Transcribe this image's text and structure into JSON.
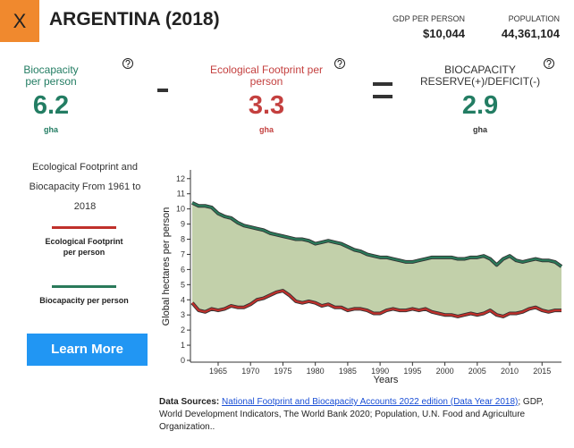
{
  "header": {
    "close": "X",
    "title": "ARGENTINA (2018)",
    "gdp_label": "GDP PER PERSON",
    "gdp": "$10,044",
    "population_label": "POPULATION",
    "population": "44,361,104"
  },
  "stats": [
    {
      "label": "Biocapacity per person",
      "value": "6.2",
      "unit": "gha"
    },
    {
      "label": "Ecological Footprint per person",
      "value": "3.3",
      "unit": "gha"
    },
    {
      "label": "BIOCAPACITY RESERVE(+)/DEFICIT(-)",
      "value": "2.9",
      "unit": "gha"
    }
  ],
  "sidebar": {
    "description": "Ecological Footprint and Biocapacity From 1961 to 2018",
    "button": "Learn More"
  },
  "chart_data": {
    "type": "line",
    "y_label": "Global hectares per person",
    "x_label": "Years",
    "x": [
      1961,
      1962,
      1963,
      1964,
      1965,
      1966,
      1967,
      1968,
      1969,
      1970,
      1971,
      1972,
      1973,
      1974,
      1975,
      1976,
      1977,
      1978,
      1979,
      1980,
      1981,
      1982,
      1983,
      1984,
      1985,
      1986,
      1987,
      1988,
      1989,
      1990,
      1991,
      1992,
      1993,
      1994,
      1995,
      1996,
      1997,
      1998,
      1999,
      2000,
      2001,
      2002,
      2003,
      2004,
      2005,
      2006,
      2007,
      2008,
      2009,
      2010,
      2011,
      2012,
      2013,
      2014,
      2015,
      2016,
      2017,
      2018
    ],
    "series": [
      {
        "name": "Ecological Footprint per person",
        "color": "#c0302b",
        "values": [
          3.8,
          3.3,
          3.2,
          3.4,
          3.3,
          3.4,
          3.6,
          3.5,
          3.5,
          3.7,
          4.0,
          4.1,
          4.3,
          4.5,
          4.6,
          4.3,
          3.9,
          3.8,
          3.9,
          3.8,
          3.6,
          3.7,
          3.5,
          3.5,
          3.3,
          3.4,
          3.4,
          3.3,
          3.1,
          3.1,
          3.3,
          3.4,
          3.3,
          3.3,
          3.4,
          3.3,
          3.4,
          3.2,
          3.1,
          3.0,
          3.0,
          2.9,
          3.0,
          3.1,
          3.0,
          3.1,
          3.3,
          3.0,
          2.9,
          3.1,
          3.1,
          3.2,
          3.4,
          3.5,
          3.3,
          3.2,
          3.3,
          3.3
        ]
      },
      {
        "name": "Biocapacity per person",
        "color": "#2a7a5a",
        "values": [
          10.4,
          10.2,
          10.2,
          10.1,
          9.7,
          9.5,
          9.4,
          9.1,
          8.9,
          8.8,
          8.7,
          8.6,
          8.4,
          8.3,
          8.2,
          8.1,
          8.0,
          8.0,
          7.9,
          7.7,
          7.8,
          7.9,
          7.8,
          7.7,
          7.5,
          7.3,
          7.2,
          7.0,
          6.9,
          6.8,
          6.8,
          6.7,
          6.6,
          6.5,
          6.5,
          6.6,
          6.7,
          6.8,
          6.8,
          6.8,
          6.8,
          6.7,
          6.7,
          6.8,
          6.8,
          6.9,
          6.7,
          6.3,
          6.7,
          6.9,
          6.6,
          6.5,
          6.6,
          6.7,
          6.6,
          6.6,
          6.5,
          6.2
        ]
      }
    ],
    "xlim": [
      1961,
      2018
    ],
    "xticks": [
      1965,
      1970,
      1975,
      1980,
      1985,
      1990,
      1995,
      2000,
      2005,
      2010,
      2015
    ],
    "ylim": [
      0,
      12.4
    ],
    "yticks": [
      0,
      1,
      2,
      3,
      4,
      5,
      6,
      7,
      8,
      9,
      10,
      11,
      12
    ],
    "fill_color": "#c2d0aa"
  },
  "sources": {
    "heading": "Data Sources:",
    "link": "National Footprint and Biocapacity Accounts 2022 edition (Data Year 2018)",
    "text": "; GDP, World Development Indicators, The World Bank 2020; Population, U.N. Food and Agriculture Organization.."
  }
}
